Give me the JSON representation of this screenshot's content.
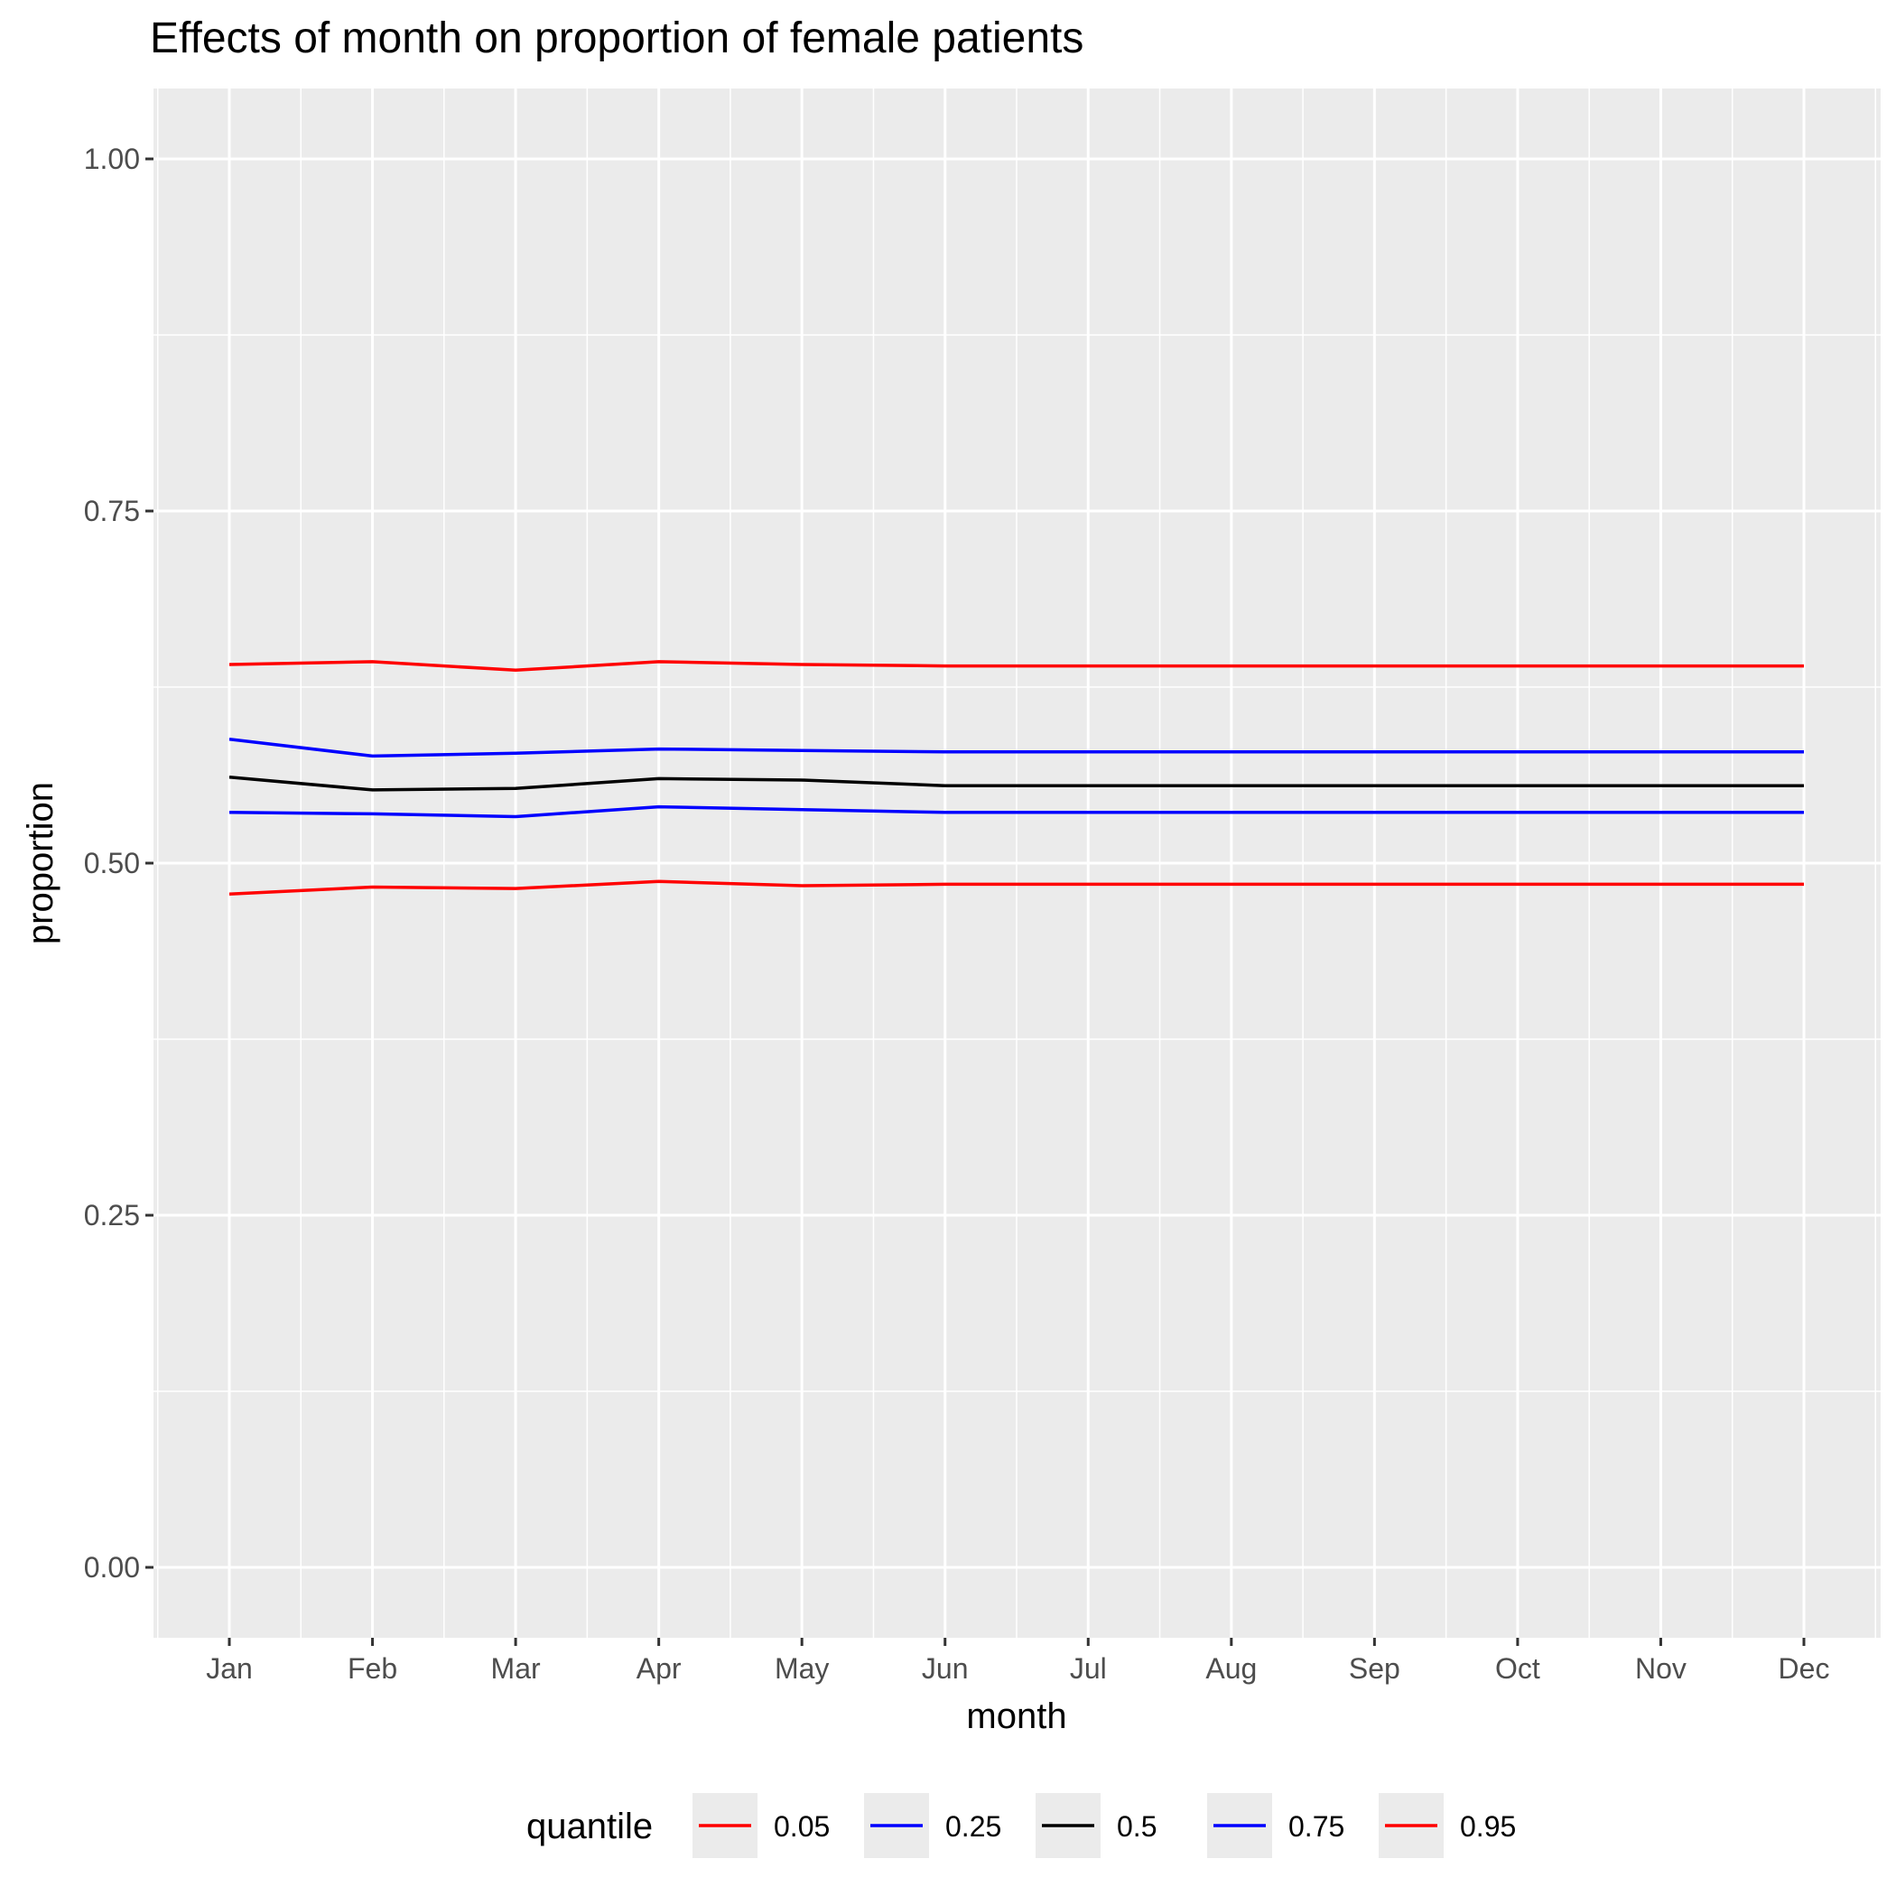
{
  "chart_data": {
    "type": "line",
    "title": "Effects of month on proportion of female patients",
    "xlabel": "month",
    "ylabel": "proportion",
    "categories": [
      "Jan",
      "Feb",
      "Mar",
      "Apr",
      "May",
      "Jun",
      "Jul",
      "Aug",
      "Sep",
      "Oct",
      "Nov",
      "Dec"
    ],
    "ylim": [
      -0.05,
      1.05
    ],
    "yticks": [
      0.0,
      0.25,
      0.5,
      0.75,
      1.0
    ],
    "ytick_labels": [
      "0.00",
      "0.25",
      "0.50",
      "0.75",
      "1.00"
    ],
    "grid": true,
    "legend": {
      "title": "quantile",
      "position": "bottom"
    },
    "series": [
      {
        "name": "0.05",
        "color": "#ff0000",
        "values": [
          0.478,
          0.483,
          0.482,
          0.487,
          0.484,
          0.485,
          0.485,
          0.485,
          0.485,
          0.485,
          0.485,
          0.485
        ]
      },
      {
        "name": "0.25",
        "color": "#0000ff",
        "values": [
          0.536,
          0.535,
          0.533,
          0.54,
          0.538,
          0.536,
          0.536,
          0.536,
          0.536,
          0.536,
          0.536,
          0.536
        ]
      },
      {
        "name": "0.5",
        "color": "#000000",
        "values": [
          0.561,
          0.552,
          0.553,
          0.56,
          0.559,
          0.555,
          0.555,
          0.555,
          0.555,
          0.555,
          0.555,
          0.555
        ]
      },
      {
        "name": "0.75",
        "color": "#0000ff",
        "values": [
          0.588,
          0.576,
          0.578,
          0.581,
          0.58,
          0.579,
          0.579,
          0.579,
          0.579,
          0.579,
          0.579,
          0.579
        ]
      },
      {
        "name": "0.95",
        "color": "#ff0000",
        "values": [
          0.641,
          0.643,
          0.637,
          0.643,
          0.641,
          0.64,
          0.64,
          0.64,
          0.64,
          0.64,
          0.64,
          0.64
        ]
      }
    ]
  }
}
